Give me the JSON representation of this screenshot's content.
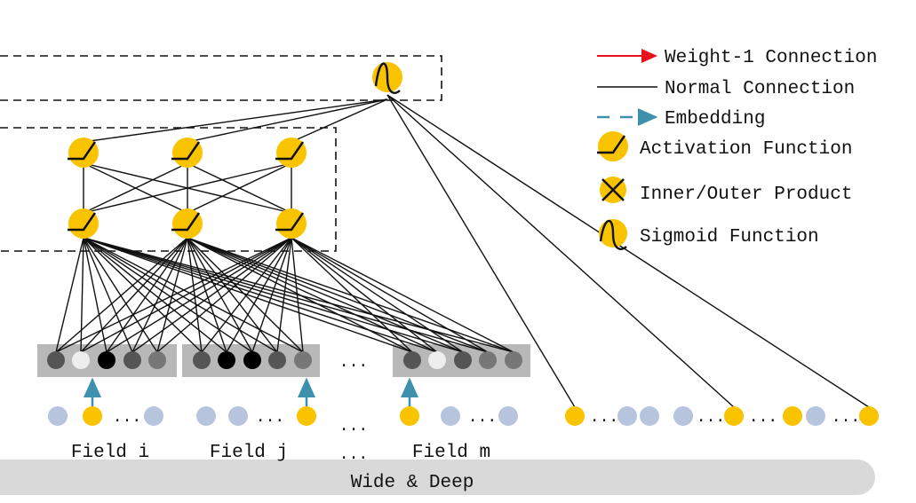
{
  "legend": {
    "weight1": "Weight-1 Connection",
    "normal": "Normal Connection",
    "embedding": "Embedding",
    "activation": "Activation Function",
    "product": "Inner/Outer Product",
    "sigmoid": "Sigmoid Function"
  },
  "fields": {
    "field_i": "Field i",
    "field_j": "Field j",
    "field_m": "Field m",
    "ellipsis": "..."
  },
  "bottom_bar": {
    "label": "Wide & Deep"
  },
  "colors": {
    "node_yellow": "#f9c300",
    "sparse_blue": "#b6c4de",
    "embed_bg": "#b8b8b8",
    "weight1_red": "#e8101a",
    "embed_teal": "#3d91ad",
    "bar_gray": "#d9d9d9"
  }
}
